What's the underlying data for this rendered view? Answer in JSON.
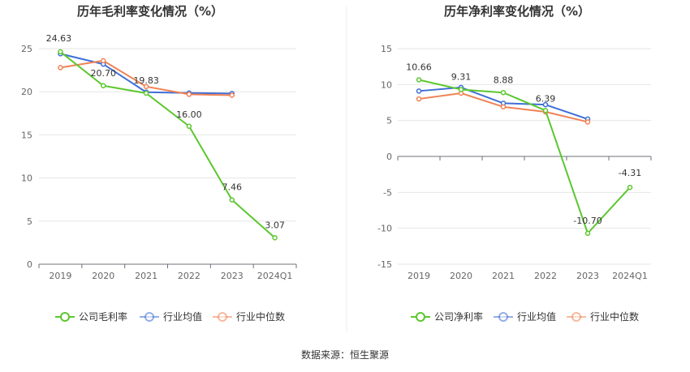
{
  "footer": {
    "source_text": "数据来源：恒生聚源"
  },
  "chart_data": [
    {
      "type": "line",
      "title": "历年毛利率变化情况（%）",
      "categories": [
        "2019",
        "2020",
        "2021",
        "2022",
        "2023",
        "2024Q1"
      ],
      "ylim": [
        0,
        25
      ],
      "yticks": [
        0,
        5,
        10,
        15,
        20,
        25
      ],
      "series": [
        {
          "name": "公司毛利率",
          "color": "#5cc72f",
          "values": [
            24.63,
            20.7,
            19.83,
            16.0,
            7.46,
            3.07
          ],
          "labels": [
            "24.63",
            "20.70",
            "19.83",
            "16.00",
            "7.46",
            "3.07"
          ]
        },
        {
          "name": "行业均值",
          "color": "#3f6fd6",
          "values": [
            24.4,
            23.2,
            19.95,
            19.85,
            19.8,
            null
          ]
        },
        {
          "name": "行业中位数",
          "color": "#f08255",
          "values": [
            22.8,
            23.6,
            20.6,
            19.7,
            19.6,
            null
          ]
        }
      ],
      "legend_position": "bottom"
    },
    {
      "type": "line",
      "title": "历年净利率变化情况（%）",
      "categories": [
        "2019",
        "2020",
        "2021",
        "2022",
        "2023",
        "2024Q1"
      ],
      "ylim": [
        -15,
        15
      ],
      "yticks": [
        -15,
        -10,
        -5,
        0,
        5,
        10,
        15
      ],
      "series": [
        {
          "name": "公司净利率",
          "color": "#5cc72f",
          "values": [
            10.66,
            9.31,
            8.88,
            6.39,
            -10.7,
            -4.31
          ],
          "labels": [
            "10.66",
            "9.31",
            "8.88",
            "6.39",
            "-10.70",
            "-4.31"
          ]
        },
        {
          "name": "行业均值",
          "color": "#3f6fd6",
          "values": [
            9.1,
            9.6,
            7.4,
            7.2,
            5.2,
            null
          ]
        },
        {
          "name": "行业中位数",
          "color": "#f08255",
          "values": [
            8.0,
            8.8,
            6.9,
            6.2,
            4.8,
            null
          ]
        }
      ],
      "legend_position": "bottom"
    }
  ]
}
